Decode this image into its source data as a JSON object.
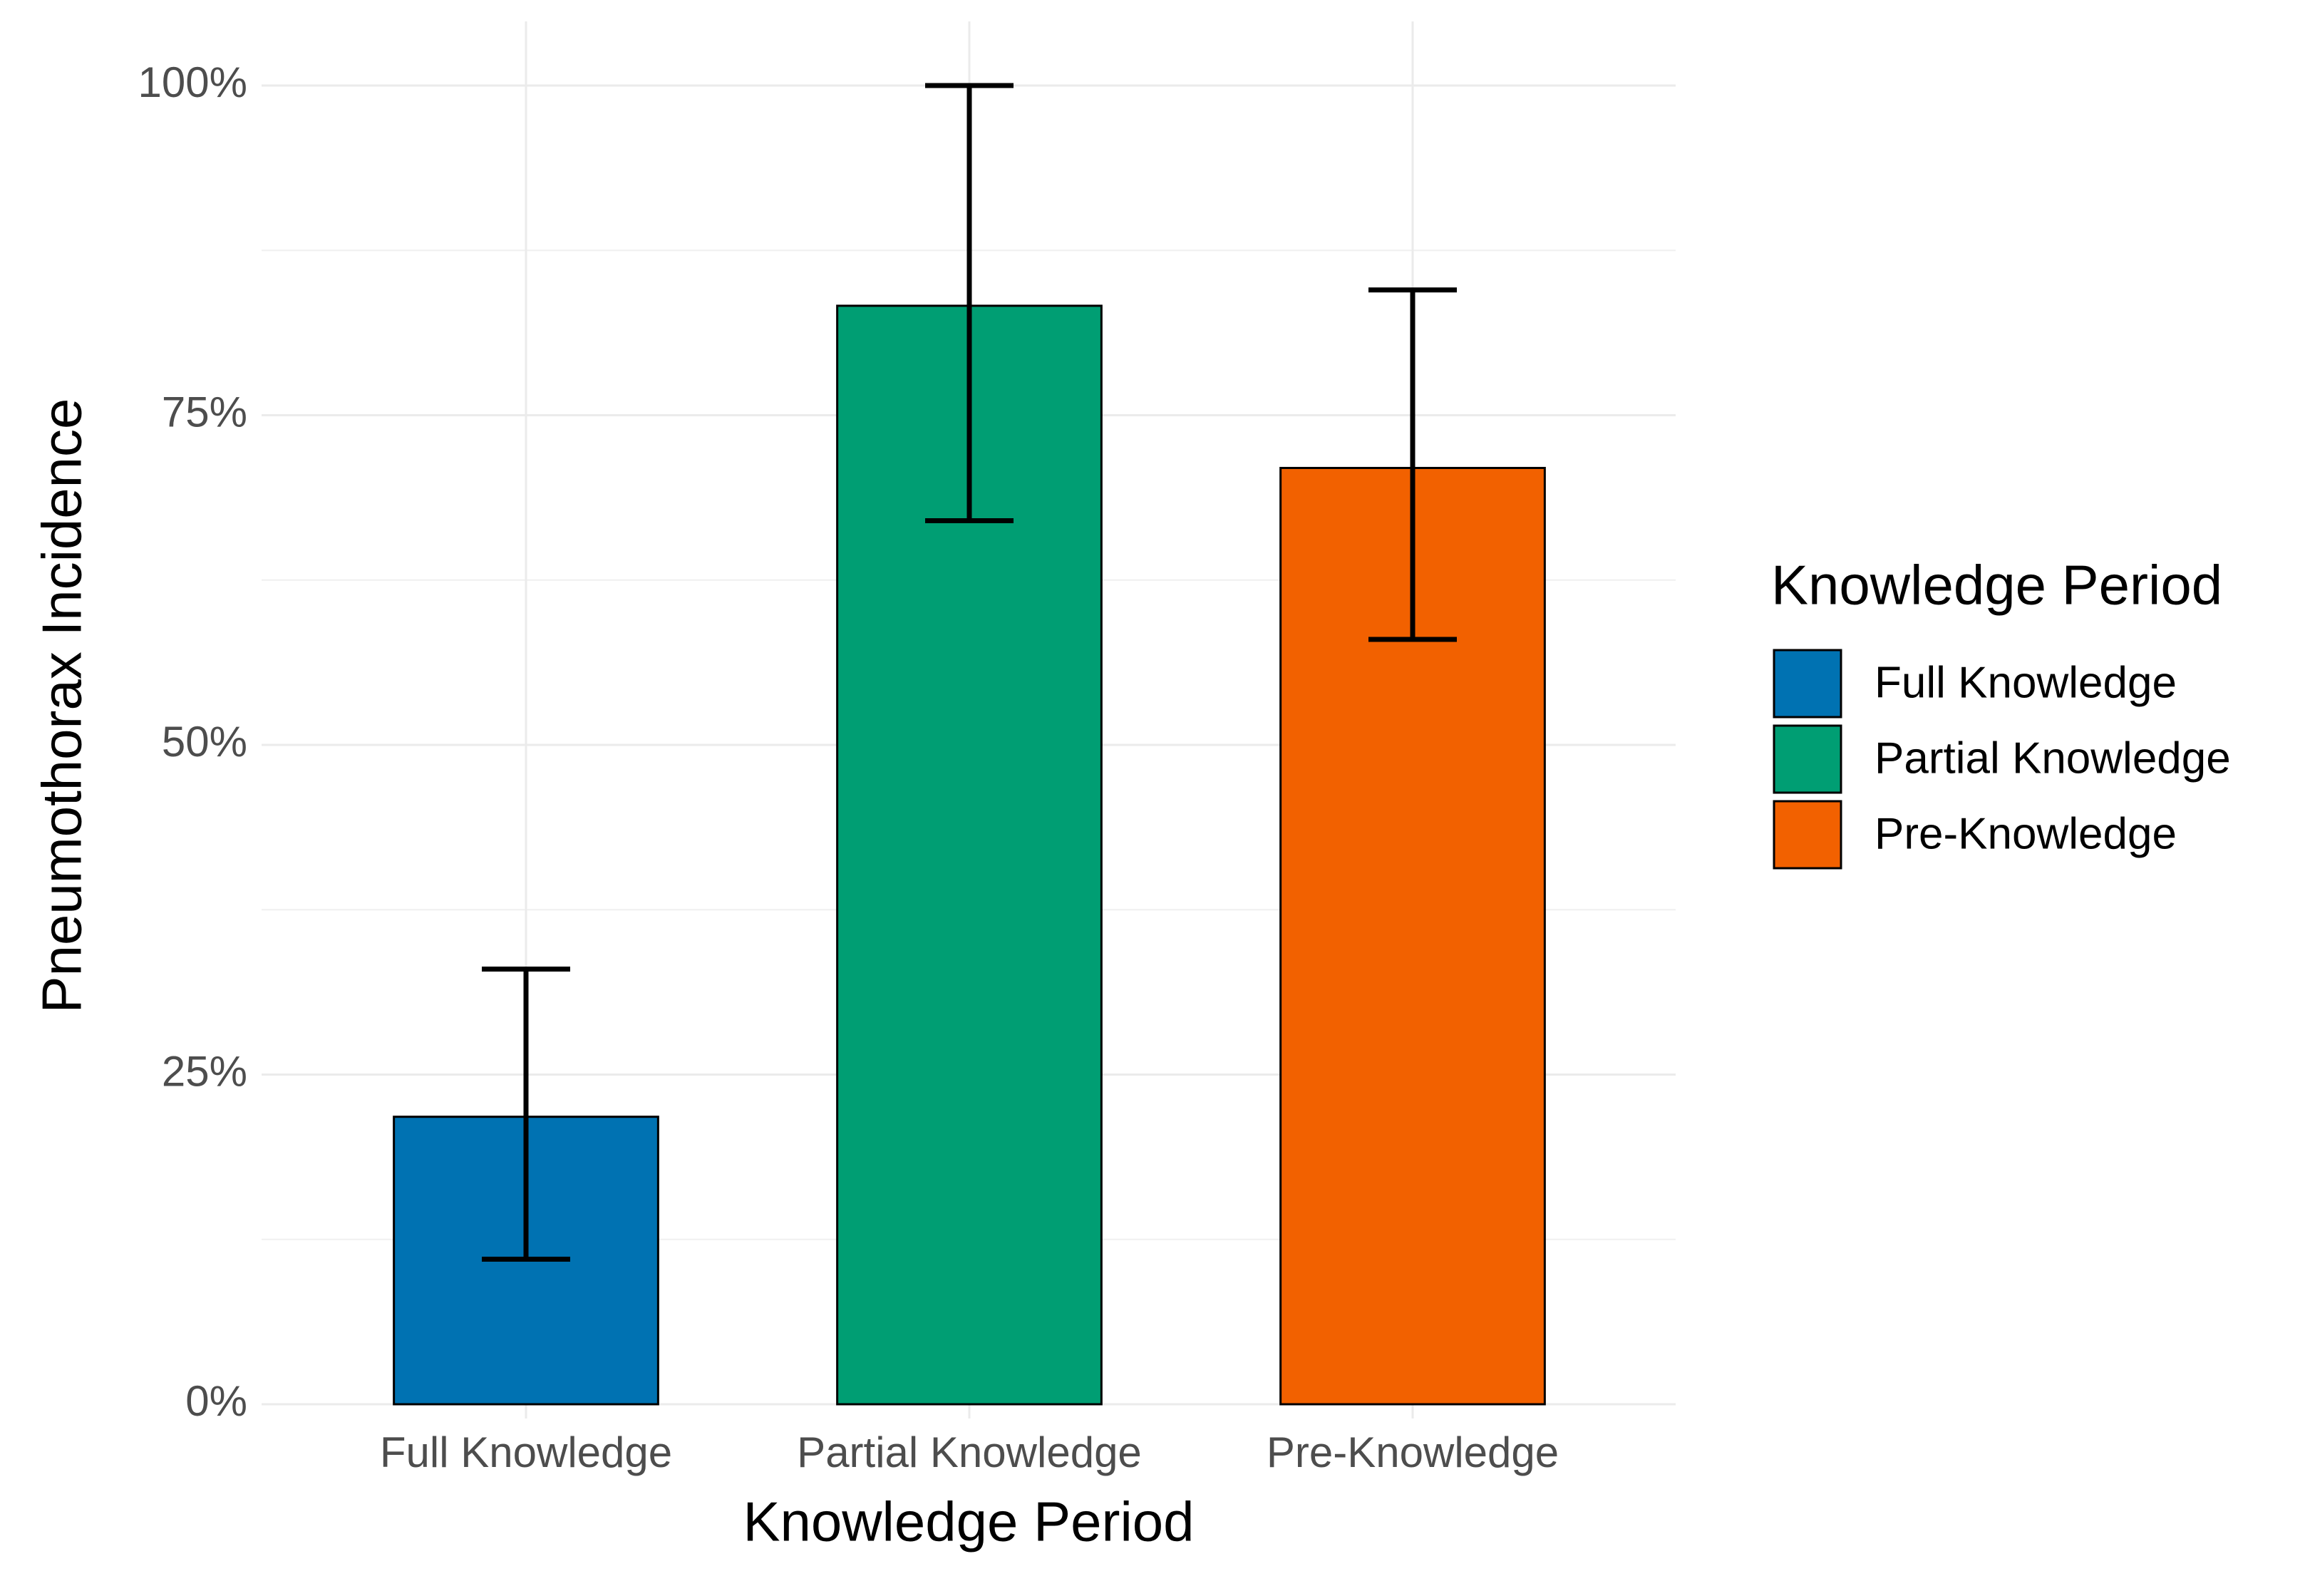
{
  "chart_data": {
    "type": "bar",
    "x_label": "Knowledge Period",
    "y_label": "Pneumothorax Incidence",
    "legend_title": "Knowledge Period",
    "categories": [
      "Full Knowledge",
      "Partial Knowledge",
      "Pre-Knowledge"
    ],
    "values": [
      21.8,
      83.3,
      71
    ],
    "error_lower": [
      11,
      67,
      58
    ],
    "error_upper": [
      33,
      100,
      84.5
    ],
    "colors": [
      "#0072b2",
      "#009e73",
      "#f26100"
    ],
    "ylim": [
      0,
      100
    ],
    "yticks": [
      {
        "value": 0,
        "label": "0%"
      },
      {
        "value": 25,
        "label": "25%"
      },
      {
        "value": 50,
        "label": "50%"
      },
      {
        "value": 75,
        "label": "75%"
      },
      {
        "value": 100,
        "label": "100%"
      }
    ],
    "grid": true,
    "legend": "right"
  }
}
